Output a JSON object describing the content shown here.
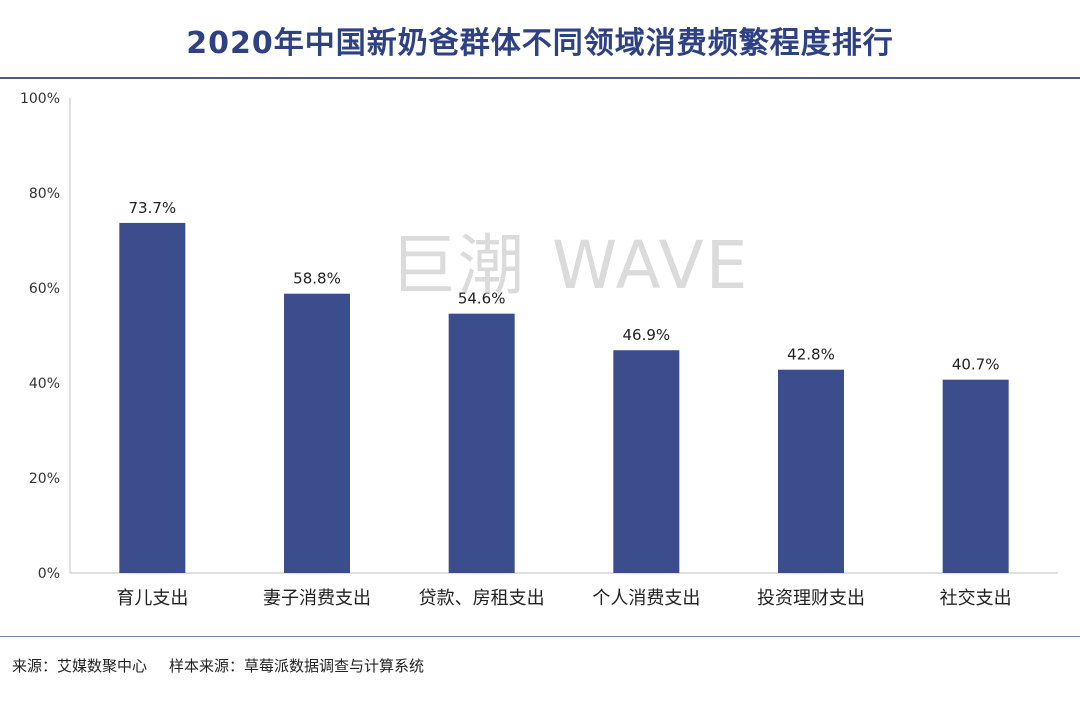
{
  "chart_data": {
    "type": "bar",
    "title": "2020年中国新奶爸群体不同领域消费频繁程度排行",
    "categories": [
      "育儿支出",
      "妻子消费支出",
      "贷款、房租支出",
      "个人消费支出",
      "投资理财支出",
      "社交支出"
    ],
    "values": [
      73.7,
      58.8,
      54.6,
      46.9,
      42.8,
      40.7
    ],
    "value_labels": [
      "73.7%",
      "58.8%",
      "54.6%",
      "46.9%",
      "42.8%",
      "40.7%"
    ],
    "y_ticks": [
      0,
      20,
      40,
      60,
      80,
      100
    ],
    "y_tick_labels": [
      "0%",
      "20%",
      "40%",
      "60%",
      "80%",
      "100%"
    ],
    "ylim": [
      0,
      100
    ],
    "xlabel": "",
    "ylabel": "",
    "grid": false,
    "bar_color": "#3b4d8d"
  },
  "watermark": {
    "cn": "巨潮",
    "en": "WAVE"
  },
  "source": {
    "left": "来源：艾媒数聚中心",
    "right": "样本来源：草莓派数据调查与计算系统"
  }
}
